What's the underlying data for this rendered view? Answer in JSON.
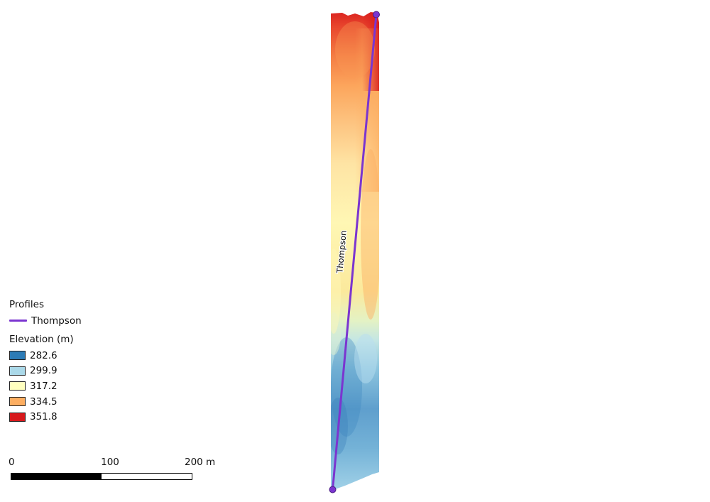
{
  "legend": {
    "profiles_title": "Profiles",
    "profile_name": "Thompson",
    "profile_color": "#7b35d0",
    "elevation_title": "Elevation (m)",
    "classes": [
      {
        "label": "282.6",
        "color": "#2c7bb6"
      },
      {
        "label": "299.9",
        "color": "#abd9e9"
      },
      {
        "label": "317.2",
        "color": "#ffffbf"
      },
      {
        "label": "334.5",
        "color": "#fdae61"
      },
      {
        "label": "351.8",
        "color": "#d7191c"
      }
    ]
  },
  "map": {
    "profile_label": "Thompson",
    "profile_color": "#7b35d0"
  },
  "scalebar": {
    "ticks": [
      "0",
      "100",
      "200 m"
    ],
    "segment_colors": [
      "#000000",
      "#ffffff"
    ]
  }
}
